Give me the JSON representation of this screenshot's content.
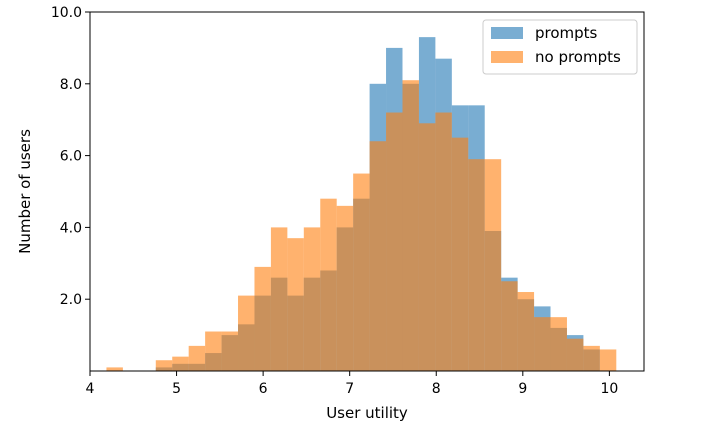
{
  "chart_data": {
    "type": "bar",
    "subtype": "overlaid histogram",
    "xlabel": "User utility",
    "ylabel": "Number of users",
    "xlim": [
      4.0,
      10.4
    ],
    "ylim": [
      0,
      10.0
    ],
    "x_ticks": [
      4,
      5,
      6,
      7,
      8,
      9,
      10
    ],
    "x_tick_labels": [
      "4",
      "5",
      "6",
      "7",
      "8",
      "9",
      "10"
    ],
    "y_ticks": [
      2.0,
      4.0,
      6.0,
      8.0,
      10.0
    ],
    "y_tick_labels": [
      "2.0",
      "4.0",
      "6.0",
      "8.0",
      "10.0"
    ],
    "bin_width": 0.19,
    "bin_starts": [
      4.0,
      4.19,
      4.38,
      4.57,
      4.76,
      4.95,
      5.14,
      5.33,
      5.52,
      5.71,
      5.9,
      6.09,
      6.28,
      6.47,
      6.66,
      6.85,
      7.04,
      7.23,
      7.42,
      7.61,
      7.8,
      7.99,
      8.18,
      8.37,
      8.56,
      8.75,
      8.94,
      9.13,
      9.32,
      9.51,
      9.7,
      9.89
    ],
    "grid": false,
    "legend_position": "top-right",
    "series": [
      {
        "name": "prompts",
        "color": "#1f77b4",
        "opacity": 0.6,
        "values": [
          0,
          0,
          0,
          0,
          0.1,
          0.2,
          0.2,
          0.5,
          1.0,
          1.3,
          2.1,
          2.6,
          2.1,
          2.6,
          2.8,
          4.0,
          4.8,
          8.0,
          9.0,
          8.0,
          9.3,
          8.7,
          7.4,
          7.4,
          3.9,
          2.6,
          2.0,
          1.8,
          1.2,
          1.0,
          0.6,
          0
        ]
      },
      {
        "name": "no prompts",
        "color": "#ff7f0e",
        "opacity": 0.6,
        "values": [
          0,
          0.1,
          0,
          0,
          0.3,
          0.4,
          0.7,
          1.1,
          1.1,
          2.1,
          2.9,
          4.0,
          3.7,
          4.0,
          4.8,
          4.6,
          5.5,
          6.4,
          7.2,
          8.1,
          6.9,
          7.2,
          6.5,
          5.9,
          5.9,
          2.5,
          2.2,
          1.5,
          1.5,
          0.9,
          0.7,
          0.6
        ]
      }
    ]
  }
}
